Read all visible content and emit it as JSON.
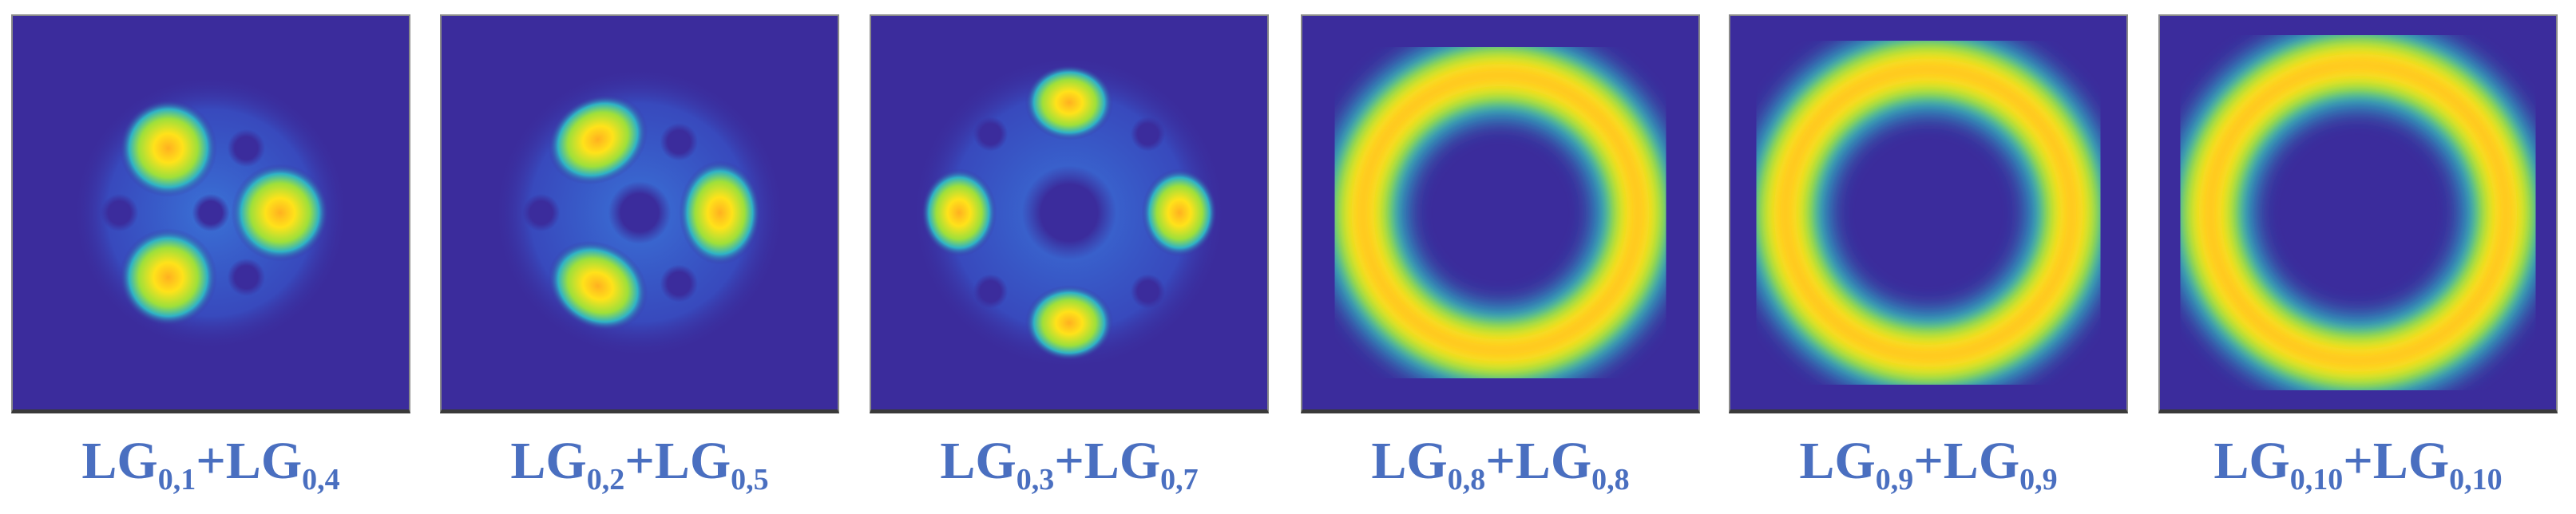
{
  "colors": {
    "background": "#3b2c9c",
    "caption": "#4a6fc0"
  },
  "panels": [
    {
      "label": {
        "main1": "LG",
        "sub1": "0,1",
        "plus": "+",
        "main2": "LG",
        "sub2": "0,4"
      },
      "pattern": "three-lobes-with-dark-spots"
    },
    {
      "label": {
        "main1": "LG",
        "sub1": "0,2",
        "plus": "+",
        "main2": "LG",
        "sub2": "0,5"
      },
      "pattern": "three-lobes-with-dark-ring"
    },
    {
      "label": {
        "main1": "LG",
        "sub1": "0,3",
        "plus": "+",
        "main2": "LG",
        "sub2": "0,7"
      },
      "pattern": "four-lobes-with-dark-center"
    },
    {
      "label": {
        "main1": "LG",
        "sub1": "0,8",
        "plus": "+",
        "main2": "LG",
        "sub2": "0,8"
      },
      "pattern": "ring"
    },
    {
      "label": {
        "main1": "LG",
        "sub1": "0,9",
        "plus": "+",
        "main2": "LG",
        "sub2": "0,9"
      },
      "pattern": "ring"
    },
    {
      "label": {
        "main1": "LG",
        "sub1": "0,10",
        "plus": "+",
        "main2": "LG",
        "sub2": "0,10"
      },
      "pattern": "ring"
    }
  ]
}
